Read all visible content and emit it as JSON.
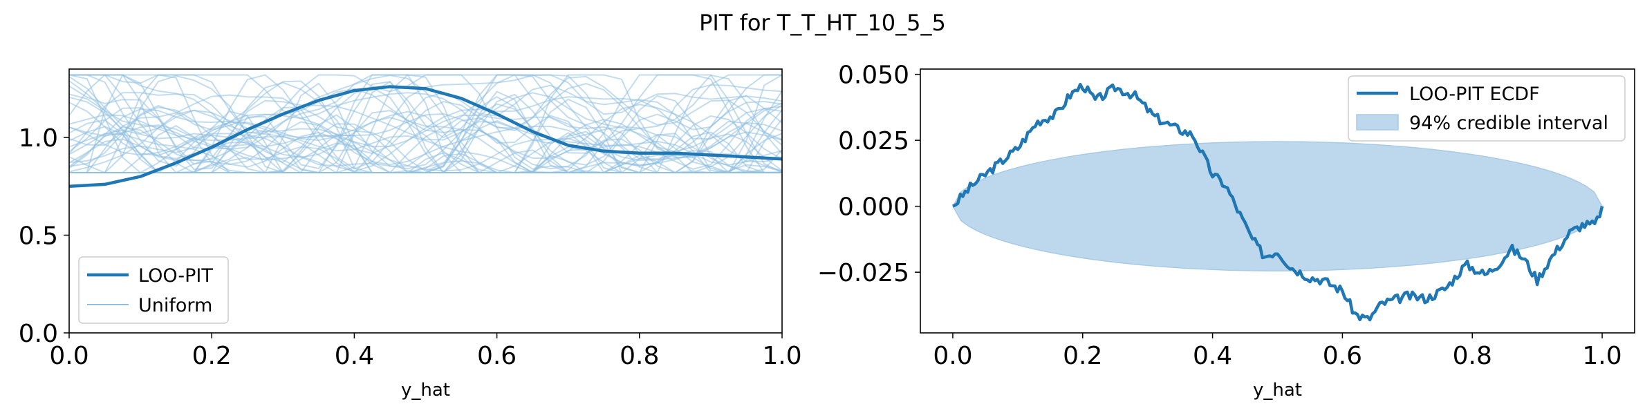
{
  "figure": {
    "suptitle": "PIT for T_T_HT_10_5_5"
  },
  "chart_data": [
    {
      "type": "line",
      "xlabel": "y_hat",
      "ylabel": "",
      "xlim": [
        0.0,
        1.0
      ],
      "ylim": [
        0.0,
        1.35
      ],
      "xticks": [
        "0.0",
        "0.2",
        "0.4",
        "0.6",
        "0.8",
        "1.0"
      ],
      "yticks": [
        "0.0",
        "0.5",
        "1.0"
      ],
      "legend": {
        "position": "lower-left",
        "entries": [
          "LOO-PIT",
          "Uniform"
        ]
      },
      "colors": {
        "loo_pit": "#1f77b4",
        "uniform": "#8fbfe0"
      },
      "series": [
        {
          "name": "LOO-PIT",
          "x": [
            0.0,
            0.05,
            0.1,
            0.15,
            0.2,
            0.25,
            0.3,
            0.35,
            0.4,
            0.45,
            0.5,
            0.55,
            0.6,
            0.65,
            0.7,
            0.75,
            0.8,
            0.85,
            0.9,
            0.95,
            1.0
          ],
          "values": [
            0.75,
            0.76,
            0.8,
            0.87,
            0.95,
            1.04,
            1.12,
            1.19,
            1.24,
            1.26,
            1.25,
            1.2,
            1.12,
            1.03,
            0.96,
            0.93,
            0.92,
            0.92,
            0.91,
            0.9,
            0.89
          ]
        },
        {
          "name": "Uniform",
          "x": [
            0.0,
            0.1,
            0.2,
            0.3,
            0.4,
            0.5,
            0.6,
            0.7,
            0.8,
            0.9,
            1.0
          ],
          "values": [
            1.0,
            1.0,
            1.0,
            1.0,
            1.0,
            1.0,
            1.0,
            1.0,
            1.0,
            1.0,
            1.0
          ],
          "band": [
            0.82,
            1.32
          ]
        }
      ]
    },
    {
      "type": "line",
      "xlabel": "y_hat",
      "ylabel": "",
      "xlim": [
        -0.05,
        1.05
      ],
      "ylim": [
        -0.048,
        0.052
      ],
      "xticks": [
        "0.0",
        "0.2",
        "0.4",
        "0.6",
        "0.8",
        "1.0"
      ],
      "yticks": [
        "0.050",
        "0.025",
        "0.000",
        "−0.025"
      ],
      "legend": {
        "position": "top-right",
        "entries": [
          "LOO-PIT ECDF",
          "94% credible interval"
        ]
      },
      "colors": {
        "ecdf": "#1f77b4",
        "interval": "#a7cbe6"
      },
      "series": [
        {
          "name": "LOO-PIT ECDF",
          "x": [
            0.0,
            0.03,
            0.06,
            0.1,
            0.13,
            0.16,
            0.18,
            0.2,
            0.22,
            0.25,
            0.28,
            0.31,
            0.34,
            0.37,
            0.4,
            0.42,
            0.44,
            0.46,
            0.48,
            0.5,
            0.52,
            0.55,
            0.57,
            0.6,
            0.62,
            0.64,
            0.66,
            0.7,
            0.73,
            0.76,
            0.79,
            0.82,
            0.84,
            0.86,
            0.88,
            0.9,
            0.92,
            0.95,
            0.97,
            0.99,
            1.0
          ],
          "values": [
            0.0,
            0.008,
            0.014,
            0.022,
            0.032,
            0.035,
            0.042,
            0.046,
            0.04,
            0.045,
            0.042,
            0.034,
            0.03,
            0.027,
            0.012,
            0.008,
            -0.002,
            -0.012,
            -0.019,
            -0.017,
            -0.023,
            -0.027,
            -0.028,
            -0.032,
            -0.041,
            -0.043,
            -0.037,
            -0.034,
            -0.035,
            -0.031,
            -0.022,
            -0.026,
            -0.022,
            -0.016,
            -0.02,
            -0.028,
            -0.02,
            -0.01,
            -0.007,
            -0.007,
            0.0
          ]
        },
        {
          "name": "94% credible interval",
          "x": [
            0.0,
            0.5,
            1.0
          ],
          "upper": 0.0245,
          "lower": -0.0245
        }
      ]
    }
  ]
}
